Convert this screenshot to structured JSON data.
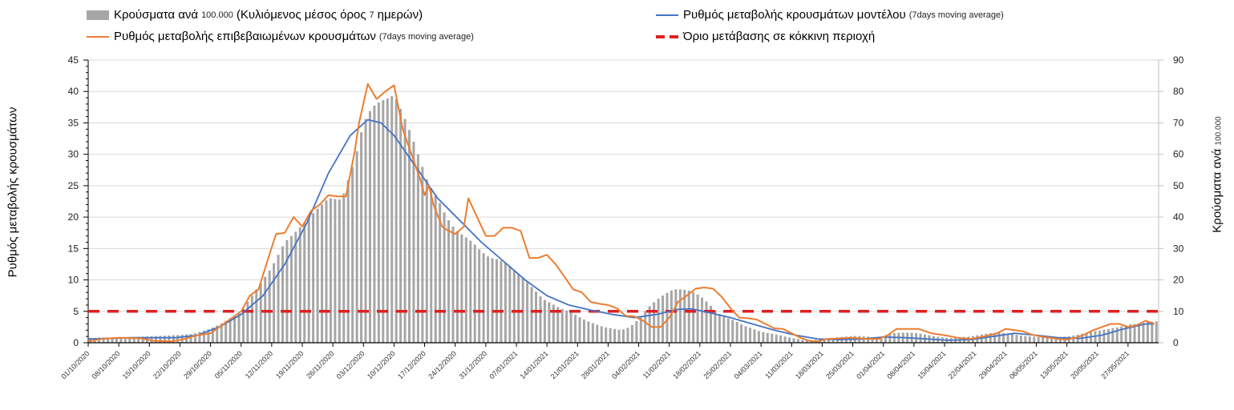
{
  "chart_data": {
    "type": "bar+line",
    "title": "",
    "legend": [
      {
        "key": "bars",
        "label": "Κρούσματα ανά",
        "label_small": "100.000",
        "label_rest": "(Κυλιόμενος μέσος όρος",
        "label_small2": "7",
        "label_end": "ημερών)",
        "color": "#a6a6a6",
        "style": "bar"
      },
      {
        "key": "model",
        "label": "Ρυθμός μεταβολής κρουσμάτων μοντέλου",
        "label_small": "(7days moving average)",
        "color": "#4472c4",
        "style": "line"
      },
      {
        "key": "observed",
        "label": "Ρυθμός μεταβολής επιβεβαιωμένων κρουσμάτων",
        "label_small": "(7days moving average)",
        "color": "#ed7d31",
        "style": "line"
      },
      {
        "key": "threshold",
        "label": "Όριο μετάβασης σε κόκκινη περιοχή",
        "color": "#e02020",
        "style": "dashed"
      }
    ],
    "legend_placement": "top",
    "ylabel_left": "Ρυθμός μεταβολής κρουσμάτων",
    "ylabel_right": "Κρούσματα ανά",
    "ylabel_right_small": "100.000",
    "ylim_left": [
      0,
      45
    ],
    "ylim_right": [
      0,
      90
    ],
    "yticks_left": [
      "0",
      "5",
      "10",
      "15",
      "20",
      "25",
      "30",
      "35",
      "40",
      "45"
    ],
    "yticks_right": [
      "0",
      "10",
      "20",
      "30",
      "40",
      "50",
      "60",
      "70",
      "80",
      "90"
    ],
    "grid": true,
    "x_start_date": "01/10/2020",
    "x_days": 245,
    "xtick_labels": [
      "01/10/2020",
      "08/10/2020",
      "15/10/2020",
      "22/10/2020",
      "29/10/2020",
      "05/11/2020",
      "12/11/2020",
      "19/11/2020",
      "26/11/2020",
      "03/12/2020",
      "10/12/2020",
      "17/12/2020",
      "24/12/2020",
      "31/12/2020",
      "07/01/2021",
      "14/01/2021",
      "21/01/2021",
      "28/01/2021",
      "04/02/2021",
      "11/02/2021",
      "18/02/2021",
      "25/02/2021",
      "04/03/2021",
      "11/03/2021",
      "18/03/2021",
      "25/03/2021",
      "01/04/2021",
      "08/04/2021",
      "15/04/2021",
      "22/04/2021",
      "29/04/2021",
      "06/05/2021",
      "13/05/2021",
      "20/05/2021",
      "27/05/2021"
    ],
    "threshold_value": 5,
    "series": [
      {
        "name": "observed",
        "axis": "left",
        "points_day_value": [
          [
            0,
            0.2
          ],
          [
            3,
            0.6
          ],
          [
            7,
            0.8
          ],
          [
            12,
            0.7
          ],
          [
            15,
            0.3
          ],
          [
            19,
            0.2
          ],
          [
            22,
            0.6
          ],
          [
            25,
            1.2
          ],
          [
            28,
            1.5
          ],
          [
            30,
            2.5
          ],
          [
            32,
            3.5
          ],
          [
            35,
            5.0
          ],
          [
            37,
            7.5
          ],
          [
            39,
            8.5
          ],
          [
            41,
            13.0
          ],
          [
            43,
            17.3
          ],
          [
            45,
            17.5
          ],
          [
            47,
            20.0
          ],
          [
            49,
            18.5
          ],
          [
            51,
            21.0
          ],
          [
            53,
            22.0
          ],
          [
            55,
            23.5
          ],
          [
            57,
            23.3
          ],
          [
            59,
            23.3
          ],
          [
            61,
            30.5
          ],
          [
            62,
            35.0
          ],
          [
            64,
            41.2
          ],
          [
            66,
            38.8
          ],
          [
            68,
            40.0
          ],
          [
            70,
            41.0
          ],
          [
            72,
            34.0
          ],
          [
            74,
            30.0
          ],
          [
            76,
            26.0
          ],
          [
            77,
            23.5
          ],
          [
            78,
            25.0
          ],
          [
            79,
            22.0
          ],
          [
            81,
            18.5
          ],
          [
            82,
            18.0
          ],
          [
            84,
            17.3
          ],
          [
            86,
            18.5
          ],
          [
            87,
            23.0
          ],
          [
            89,
            20.0
          ],
          [
            91,
            17.0
          ],
          [
            93,
            17.0
          ],
          [
            95,
            18.3
          ],
          [
            97,
            18.3
          ],
          [
            99,
            17.8
          ],
          [
            101,
            13.5
          ],
          [
            103,
            13.5
          ],
          [
            105,
            14.0
          ],
          [
            107,
            12.5
          ],
          [
            109,
            10.5
          ],
          [
            111,
            8.5
          ],
          [
            113,
            8.0
          ],
          [
            115,
            6.5
          ],
          [
            117,
            6.2
          ],
          [
            119,
            6.0
          ],
          [
            121,
            5.5
          ],
          [
            123,
            4.3
          ],
          [
            125,
            4.2
          ],
          [
            127,
            3.5
          ],
          [
            129,
            2.5
          ],
          [
            131,
            2.5
          ],
          [
            133,
            4.0
          ],
          [
            135,
            6.5
          ],
          [
            137,
            7.5
          ],
          [
            139,
            8.6
          ],
          [
            141,
            8.8
          ],
          [
            143,
            8.6
          ],
          [
            145,
            7.3
          ],
          [
            147,
            5.5
          ],
          [
            149,
            4.0
          ],
          [
            151,
            3.9
          ],
          [
            153,
            3.7
          ],
          [
            155,
            3.0
          ],
          [
            157,
            2.3
          ],
          [
            159,
            2.2
          ],
          [
            161,
            1.5
          ],
          [
            163,
            0.8
          ],
          [
            165,
            0.3
          ],
          [
            167,
            0.2
          ],
          [
            169,
            0.6
          ],
          [
            172,
            0.7
          ],
          [
            175,
            0.8
          ],
          [
            178,
            0.6
          ],
          [
            181,
            0.6
          ],
          [
            183,
            1.2
          ],
          [
            185,
            2.2
          ],
          [
            187,
            2.2
          ],
          [
            190,
            2.2
          ],
          [
            193,
            1.5
          ],
          [
            196,
            1.2
          ],
          [
            199,
            0.8
          ],
          [
            202,
            0.6
          ],
          [
            205,
            1.0
          ],
          [
            208,
            1.5
          ],
          [
            210,
            2.2
          ],
          [
            212,
            2.0
          ],
          [
            214,
            1.8
          ],
          [
            216,
            1.3
          ],
          [
            218,
            1.0
          ],
          [
            220,
            0.8
          ],
          [
            222,
            0.6
          ],
          [
            224,
            0.5
          ],
          [
            226,
            0.8
          ],
          [
            228,
            1.3
          ],
          [
            230,
            2.0
          ],
          [
            232,
            2.5
          ],
          [
            234,
            3.0
          ],
          [
            236,
            3.0
          ],
          [
            238,
            2.5
          ],
          [
            240,
            2.8
          ],
          [
            242,
            3.5
          ],
          [
            244,
            3.0
          ]
        ]
      },
      {
        "name": "model",
        "axis": "left",
        "points_day_value": [
          [
            0,
            0.6
          ],
          [
            10,
            0.8
          ],
          [
            20,
            0.8
          ],
          [
            25,
            1.2
          ],
          [
            30,
            2.5
          ],
          [
            35,
            4.5
          ],
          [
            40,
            7.5
          ],
          [
            45,
            12.5
          ],
          [
            50,
            19.0
          ],
          [
            55,
            27.0
          ],
          [
            60,
            33.0
          ],
          [
            64,
            35.5
          ],
          [
            67,
            35.0
          ],
          [
            70,
            33.0
          ],
          [
            75,
            28.0
          ],
          [
            80,
            23.0
          ],
          [
            85,
            19.5
          ],
          [
            90,
            16.0
          ],
          [
            95,
            13.0
          ],
          [
            100,
            10.0
          ],
          [
            105,
            7.5
          ],
          [
            110,
            6.0
          ],
          [
            115,
            5.2
          ],
          [
            120,
            4.5
          ],
          [
            125,
            4.0
          ],
          [
            130,
            4.5
          ],
          [
            135,
            5.3
          ],
          [
            138,
            5.4
          ],
          [
            142,
            4.8
          ],
          [
            147,
            4.0
          ],
          [
            152,
            3.0
          ],
          [
            157,
            2.0
          ],
          [
            162,
            1.2
          ],
          [
            167,
            0.6
          ],
          [
            172,
            0.5
          ],
          [
            177,
            0.6
          ],
          [
            182,
            0.9
          ],
          [
            187,
            0.8
          ],
          [
            192,
            0.6
          ],
          [
            197,
            0.4
          ],
          [
            202,
            0.5
          ],
          [
            207,
            1.0
          ],
          [
            212,
            1.5
          ],
          [
            217,
            1.2
          ],
          [
            222,
            0.8
          ],
          [
            227,
            0.7
          ],
          [
            232,
            1.2
          ],
          [
            237,
            2.2
          ],
          [
            242,
            3.0
          ],
          [
            244,
            3.0
          ]
        ]
      },
      {
        "name": "bars",
        "axis": "right",
        "points_day_value": [
          [
            0,
            1.5
          ],
          [
            7,
            1.8
          ],
          [
            14,
            2.0
          ],
          [
            21,
            2.5
          ],
          [
            24,
            2.8
          ],
          [
            28,
            4.5
          ],
          [
            31,
            6.5
          ],
          [
            35,
            10.0
          ],
          [
            38,
            16.0
          ],
          [
            42,
            24.0
          ],
          [
            45,
            32.0
          ],
          [
            48,
            36.0
          ],
          [
            52,
            42.0
          ],
          [
            55,
            46.0
          ],
          [
            58,
            45.5
          ],
          [
            61,
            58.0
          ],
          [
            63,
            70.0
          ],
          [
            65,
            75.0
          ],
          [
            67,
            77.0
          ],
          [
            69,
            78.0
          ],
          [
            70,
            79.0
          ],
          [
            72,
            73.0
          ],
          [
            74,
            66.0
          ],
          [
            76,
            58.0
          ],
          [
            78,
            50.0
          ],
          [
            80,
            46.0
          ],
          [
            82,
            40.0
          ],
          [
            84,
            36.0
          ],
          [
            86,
            34.0
          ],
          [
            88,
            32.0
          ],
          [
            90,
            29.0
          ],
          [
            92,
            27.0
          ],
          [
            94,
            26.5
          ],
          [
            96,
            25.0
          ],
          [
            98,
            22.5
          ],
          [
            100,
            20.0
          ],
          [
            102,
            17.0
          ],
          [
            104,
            14.0
          ],
          [
            106,
            12.5
          ],
          [
            108,
            11.0
          ],
          [
            110,
            10.0
          ],
          [
            112,
            8.5
          ],
          [
            114,
            7.0
          ],
          [
            116,
            6.0
          ],
          [
            118,
            5.0
          ],
          [
            120,
            4.5
          ],
          [
            122,
            4.0
          ],
          [
            124,
            5.0
          ],
          [
            126,
            7.5
          ],
          [
            128,
            11.0
          ],
          [
            130,
            13.5
          ],
          [
            132,
            15.5
          ],
          [
            134,
            17.0
          ],
          [
            136,
            17.0
          ],
          [
            138,
            16.5
          ],
          [
            140,
            15.0
          ],
          [
            142,
            12.5
          ],
          [
            144,
            9.5
          ],
          [
            146,
            8.0
          ],
          [
            148,
            7.0
          ],
          [
            150,
            5.5
          ],
          [
            152,
            4.5
          ],
          [
            154,
            3.5
          ],
          [
            156,
            3.0
          ],
          [
            158,
            2.5
          ],
          [
            160,
            1.8
          ],
          [
            162,
            1.3
          ],
          [
            164,
            0.8
          ],
          [
            166,
            0.8
          ],
          [
            168,
            1.2
          ],
          [
            170,
            1.4
          ],
          [
            172,
            1.8
          ],
          [
            174,
            2.0
          ],
          [
            176,
            2.2
          ],
          [
            178,
            2.0
          ],
          [
            180,
            1.6
          ],
          [
            182,
            2.0
          ],
          [
            184,
            3.0
          ],
          [
            186,
            3.2
          ],
          [
            188,
            3.2
          ],
          [
            190,
            3.0
          ],
          [
            192,
            2.5
          ],
          [
            194,
            2.0
          ],
          [
            196,
            1.6
          ],
          [
            198,
            1.5
          ],
          [
            200,
            1.8
          ],
          [
            202,
            2.0
          ],
          [
            204,
            2.5
          ],
          [
            206,
            3.0
          ],
          [
            208,
            3.2
          ],
          [
            210,
            3.0
          ],
          [
            212,
            2.6
          ],
          [
            214,
            2.2
          ],
          [
            216,
            2.0
          ],
          [
            218,
            1.8
          ],
          [
            220,
            1.6
          ],
          [
            222,
            1.8
          ],
          [
            224,
            2.0
          ],
          [
            226,
            2.4
          ],
          [
            228,
            3.0
          ],
          [
            230,
            3.6
          ],
          [
            232,
            4.0
          ],
          [
            234,
            4.5
          ],
          [
            236,
            5.0
          ],
          [
            238,
            5.8
          ],
          [
            240,
            6.0
          ],
          [
            242,
            6.4
          ],
          [
            244,
            6.8
          ]
        ]
      }
    ]
  }
}
